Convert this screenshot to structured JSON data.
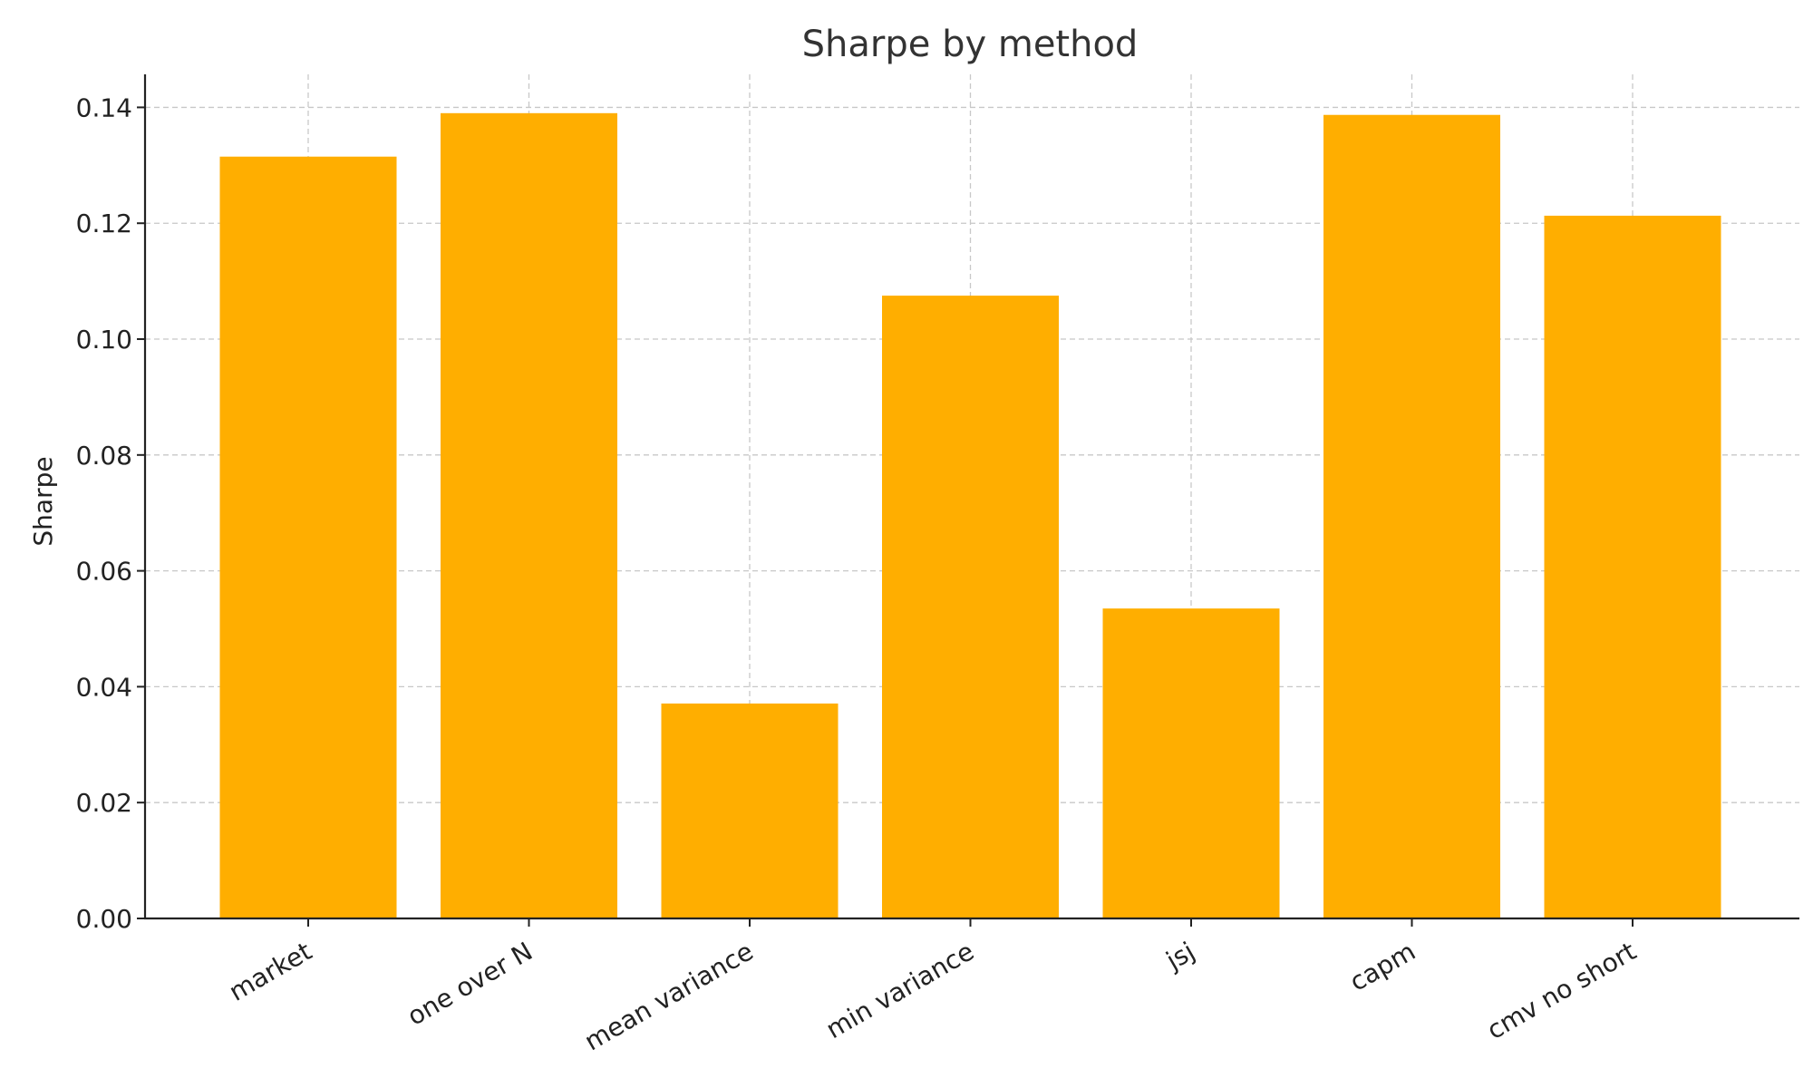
{
  "chart_data": {
    "type": "bar",
    "title": "Sharpe by method",
    "xlabel": "",
    "ylabel": "Sharpe",
    "categories": [
      "market",
      "one over N",
      "mean variance",
      "min variance",
      "jsj",
      "capm",
      "cmv no short"
    ],
    "values": [
      0.1315,
      0.139,
      0.0371,
      0.1075,
      0.0535,
      0.1387,
      0.1213
    ],
    "ylim": [
      0,
      0.1457
    ],
    "yticks": [
      0.0,
      0.02,
      0.04,
      0.06,
      0.08,
      0.1,
      0.12,
      0.14
    ],
    "ytick_labels": [
      "0.00",
      "0.02",
      "0.04",
      "0.06",
      "0.08",
      "0.10",
      "0.12",
      "0.14"
    ],
    "grid": true,
    "bar_color": "#FFAE00"
  }
}
